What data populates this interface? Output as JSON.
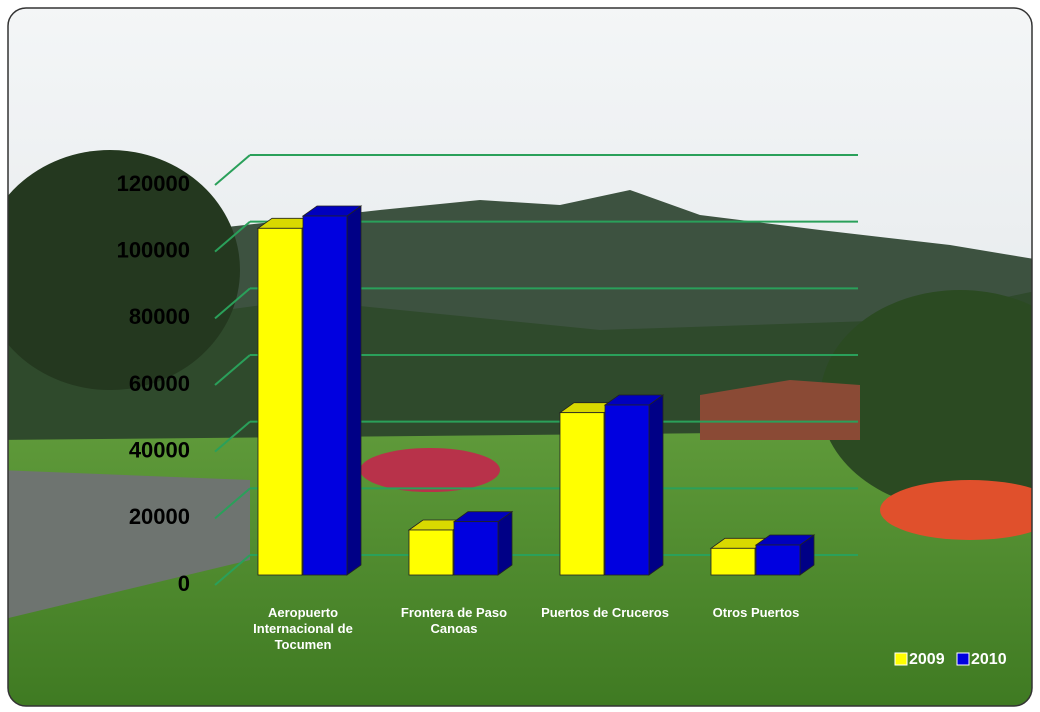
{
  "chart_data": {
    "type": "bar3d",
    "categories": [
      "Aeropuerto Internacional de Tocumen",
      "Frontera de Paso Canoas",
      "Puertos de Cruceros",
      "Otros Puertos"
    ],
    "series": [
      {
        "name": "2009",
        "color": "#ffff00",
        "values": [
          104000,
          13500,
          48700,
          8000
        ]
      },
      {
        "name": "2010",
        "color": "#0000e0",
        "values": [
          107700,
          16000,
          51000,
          9000
        ]
      }
    ],
    "ylim": [
      0,
      120000
    ],
    "yticks": [
      0,
      20000,
      40000,
      60000,
      80000,
      100000,
      120000
    ],
    "grid": true,
    "grid_color": "#2aa05a",
    "legend": "bottom-right"
  }
}
